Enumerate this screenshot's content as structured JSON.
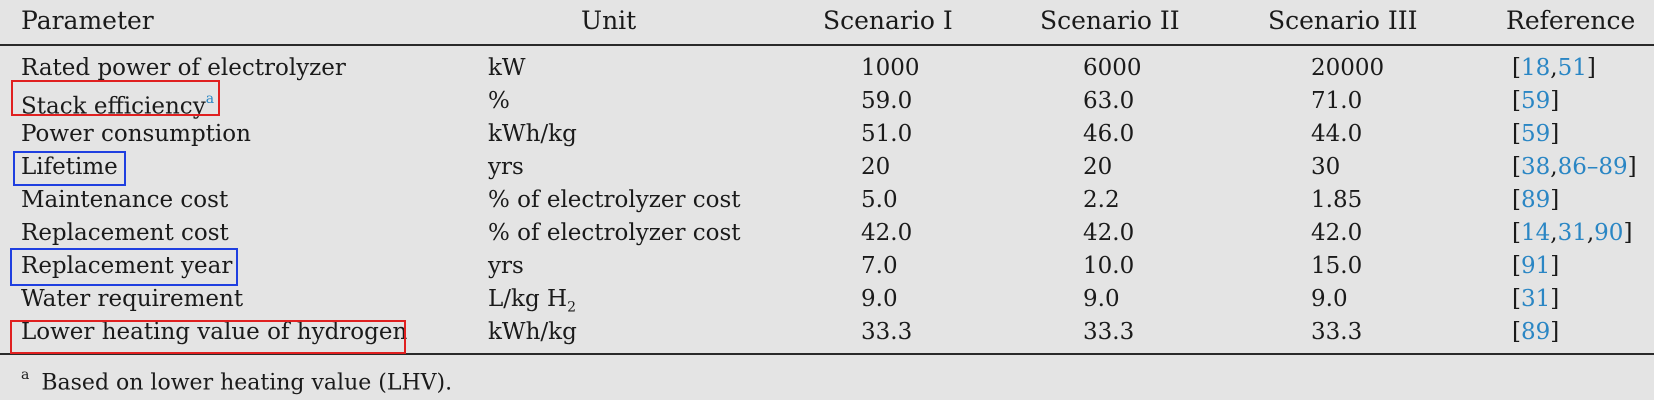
{
  "columns": {
    "parameter": "Parameter",
    "unit": "Unit",
    "scenario1": "Scenario I",
    "scenario2": "Scenario II",
    "scenario3": "Scenario III",
    "reference": "Reference"
  },
  "rows": [
    {
      "parameter": "Rated power of electrolyzer",
      "unit": "kW",
      "s1": "1000",
      "s2": "6000",
      "s3": "20000",
      "ref_open": "[",
      "ref": [
        "18",
        ",",
        "51"
      ],
      "ref_close": "]"
    },
    {
      "parameter": "Stack efficiency",
      "sup": "a",
      "unit": "%",
      "s1": "59.0",
      "s2": "63.0",
      "s3": "71.0",
      "ref_open": "[",
      "ref": [
        "59"
      ],
      "ref_close": "]"
    },
    {
      "parameter": "Power consumption",
      "unit": "kWh/kg",
      "s1": "51.0",
      "s2": "46.0",
      "s3": "44.0",
      "ref_open": "[",
      "ref": [
        "59"
      ],
      "ref_close": "]"
    },
    {
      "parameter": "Lifetime",
      "unit": "yrs",
      "s1": "20",
      "s2": "20",
      "s3": "30",
      "ref_open": "[",
      "ref": [
        "38",
        ",",
        "86–89"
      ],
      "ref_close": "]"
    },
    {
      "parameter": "Maintenance cost",
      "unit": "% of electrolyzer cost",
      "s1": "5.0",
      "s2": "2.2",
      "s3": "1.85",
      "ref_open": "[",
      "ref": [
        "89"
      ],
      "ref_close": "]"
    },
    {
      "parameter": "Replacement cost",
      "unit": "% of electrolyzer cost",
      "s1": "42.0",
      "s2": "42.0",
      "s3": "42.0",
      "ref_open": "[",
      "ref": [
        "14",
        ",",
        "31",
        ",",
        "90"
      ],
      "ref_close": "]"
    },
    {
      "parameter": "Replacement year",
      "unit": "yrs",
      "s1": "7.0",
      "s2": "10.0",
      "s3": "15.0",
      "ref_open": "[",
      "ref": [
        "91"
      ],
      "ref_close": "]"
    },
    {
      "parameter": "Water requirement",
      "unit": "L/kg H",
      "unit_sub": "2",
      "s1": "9.0",
      "s2": "9.0",
      "s3": "9.0",
      "ref_open": "[",
      "ref": [
        "31"
      ],
      "ref_close": "]"
    },
    {
      "parameter": "Lower heating value of hydrogen",
      "unit": "kWh/kg",
      "s1": "33.3",
      "s2": "33.3",
      "s3": "33.3",
      "ref_open": "[",
      "ref": [
        "89"
      ],
      "ref_close": "]"
    }
  ],
  "footnote": {
    "mark": "a",
    "text": "Based on lower heating value (LHV)."
  },
  "highlight_colors": {
    "red": "#e02020",
    "blue": "#1f3fe0",
    "link": "#2a86c4"
  }
}
